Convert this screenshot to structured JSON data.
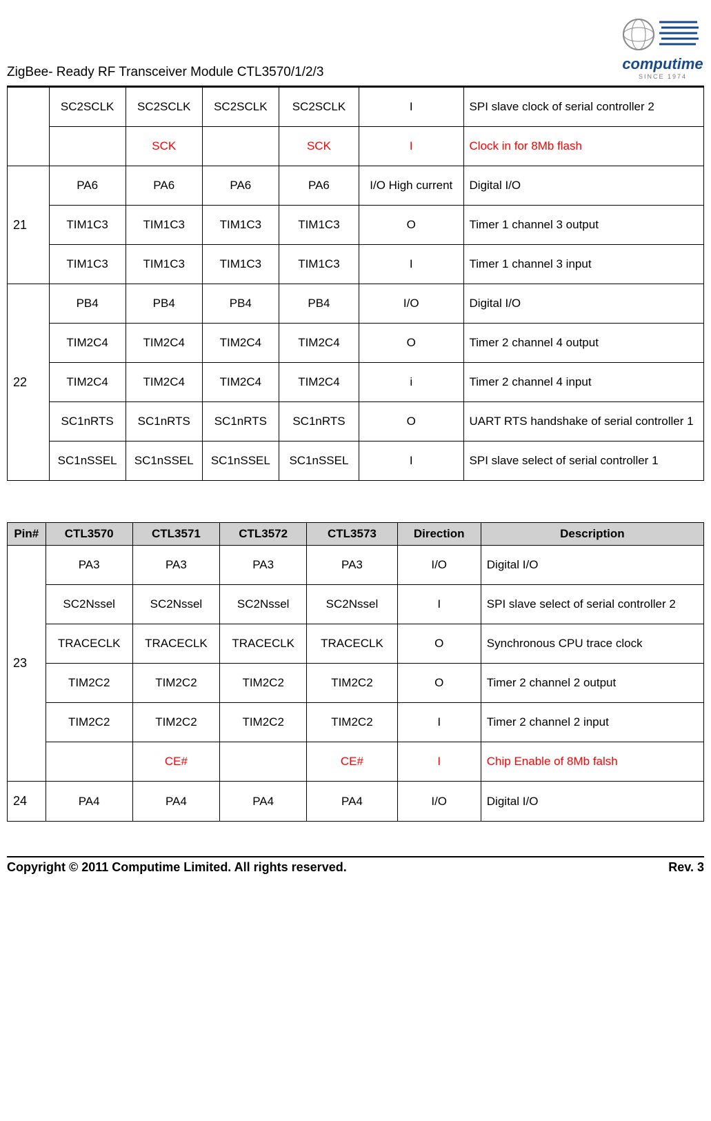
{
  "header": {
    "doc_title": "ZigBee- Ready RF Transceiver Module CTL3570/1/2/3",
    "logo_main": "computime",
    "logo_sub": "SINCE 1974"
  },
  "table1": {
    "rows": [
      {
        "pin_rowspan": 2,
        "pin": "",
        "c0": "SC2SCLK",
        "c1": "SC2SCLK",
        "c2": "SC2SCLK",
        "c3": "SC2SCLK",
        "dir": "I",
        "desc": "SPI slave clock of serial controller 2",
        "red": false
      },
      {
        "c0": "",
        "c1": "SCK",
        "c2": "",
        "c3": "SCK",
        "dir": "I",
        "desc": "Clock in for 8Mb flash",
        "red": true
      },
      {
        "pin_rowspan": 3,
        "pin": "21",
        "c0": "PA6",
        "c1": "PA6",
        "c2": "PA6",
        "c3": "PA6",
        "dir": "I/O High current",
        "desc": "Digital I/O",
        "red": false
      },
      {
        "c0": "TIM1C3",
        "c1": "TIM1C3",
        "c2": "TIM1C3",
        "c3": "TIM1C3",
        "dir": "O",
        "desc": "Timer 1 channel 3 output",
        "red": false
      },
      {
        "c0": "TIM1C3",
        "c1": "TIM1C3",
        "c2": "TIM1C3",
        "c3": "TIM1C3",
        "dir": "I",
        "desc": "Timer 1 channel 3 input",
        "red": false
      },
      {
        "pin_rowspan": 5,
        "pin": "22",
        "c0": "PB4",
        "c1": "PB4",
        "c2": "PB4",
        "c3": "PB4",
        "dir": "I/O",
        "desc": "Digital I/O",
        "red": false,
        "desc_top": true
      },
      {
        "c0": "TIM2C4",
        "c1": "TIM2C4",
        "c2": "TIM2C4",
        "c3": "TIM2C4",
        "dir": "O",
        "desc": "Timer 2 channel 4 output",
        "red": false
      },
      {
        "c0": "TIM2C4",
        "c1": "TIM2C4",
        "c2": "TIM2C4",
        "c3": "TIM2C4",
        "dir": "i",
        "desc": "Timer 2 channel 4 input",
        "red": false
      },
      {
        "c0": "SC1nRTS",
        "c1": "SC1nRTS",
        "c2": "SC1nRTS",
        "c3": "SC1nRTS",
        "dir": "O",
        "desc": "UART RTS handshake of serial controller 1",
        "red": false,
        "justify": true
      },
      {
        "c0": "SC1nSSEL",
        "c1": "SC1nSSEL",
        "c2": "SC1nSSEL",
        "c3": "SC1nSSEL",
        "dir": "I",
        "desc": "SPI slave select of serial controller 1",
        "red": false
      }
    ]
  },
  "table2": {
    "headers": [
      "Pin#",
      "CTL3570",
      "CTL3571",
      "CTL3572",
      "CTL3573",
      "Direction",
      "Description"
    ],
    "rows": [
      {
        "pin_rowspan": 6,
        "pin": "23",
        "c0": "PA3",
        "c1": "PA3",
        "c2": "PA3",
        "c3": "PA3",
        "dir": "I/O",
        "desc": "Digital I/O",
        "red": false,
        "desc_top": true
      },
      {
        "c0": "SC2Nssel",
        "c1": "SC2Nssel",
        "c2": "SC2Nssel",
        "c3": "SC2Nssel",
        "dir": "I",
        "desc": "SPI slave select of serial controller 2",
        "red": false,
        "justify": true
      },
      {
        "c0": "TRACECLK",
        "c1": "TRACECLK",
        "c2": "TRACECLK",
        "c3": "TRACECLK",
        "dir": "O",
        "desc": "Synchronous CPU trace clock",
        "red": false,
        "justify": true
      },
      {
        "c0": "TIM2C2",
        "c1": "TIM2C2",
        "c2": "TIM2C2",
        "c3": "TIM2C2",
        "dir": "O",
        "desc": "Timer 2 channel 2 output",
        "red": false
      },
      {
        "c0": "TIM2C2",
        "c1": "TIM2C2",
        "c2": "TIM2C2",
        "c3": "TIM2C2",
        "dir": "I",
        "desc": "Timer 2 channel 2 input",
        "red": false
      },
      {
        "c0": "",
        "c1": "CE#",
        "c2": "",
        "c3": "CE#",
        "dir": "I",
        "desc": "Chip Enable of 8Mb falsh",
        "red": true
      },
      {
        "pin_rowspan": 1,
        "pin": "24",
        "pin_top": true,
        "c0": "PA4",
        "c1": "PA4",
        "c2": "PA4",
        "c3": "PA4",
        "dir": "I/O",
        "desc": "Digital I/O",
        "red": false,
        "desc_top": true
      }
    ]
  },
  "footer": {
    "copyright": "Copyright © 2011 Computime Limited. All rights reserved.",
    "rev": "Rev. 3"
  },
  "colwidths": {
    "t1": [
      "60",
      "110",
      "110",
      "110",
      "115",
      "150",
      "345"
    ],
    "t2": [
      "55",
      "125",
      "125",
      "125",
      "130",
      "120",
      "320"
    ]
  }
}
